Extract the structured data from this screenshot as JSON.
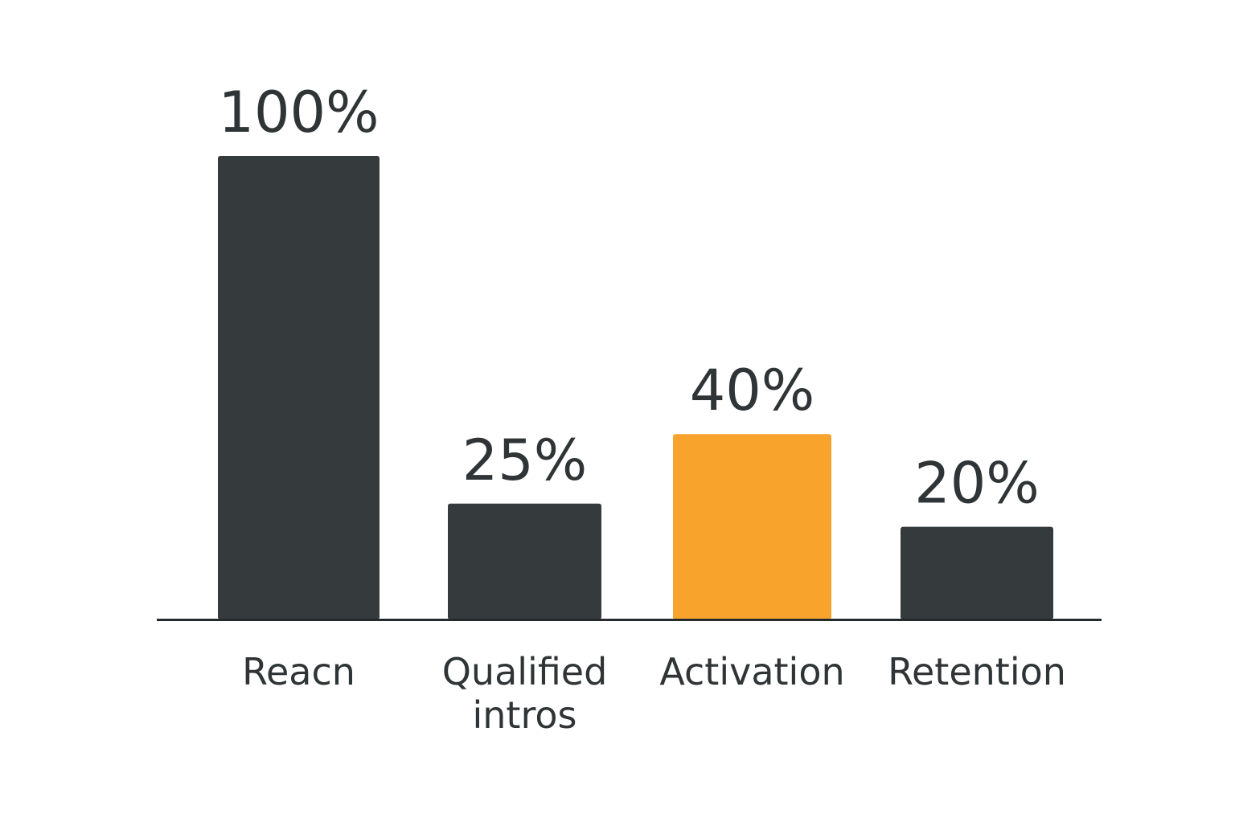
{
  "chart_data": {
    "type": "bar",
    "title": "",
    "xlabel": "",
    "ylabel": "",
    "ylim": [
      0,
      100
    ],
    "grid": false,
    "legend": "none",
    "categories": [
      "Reacn",
      "Qualified intros",
      "Activation",
      "Retention"
    ],
    "category_lines": [
      [
        "Reacn"
      ],
      [
        "Qualified",
        "intros"
      ],
      [
        "Activation"
      ],
      [
        "Retention"
      ]
    ],
    "values": [
      100,
      25,
      40,
      20
    ],
    "value_labels": [
      "100%",
      "25%",
      "40%",
      "20%"
    ],
    "highlight_index": 2,
    "colors": {
      "bar": "#353a3c",
      "highlight": "#f8a42c",
      "text": "#2f3436",
      "axis": "#24292b"
    }
  }
}
